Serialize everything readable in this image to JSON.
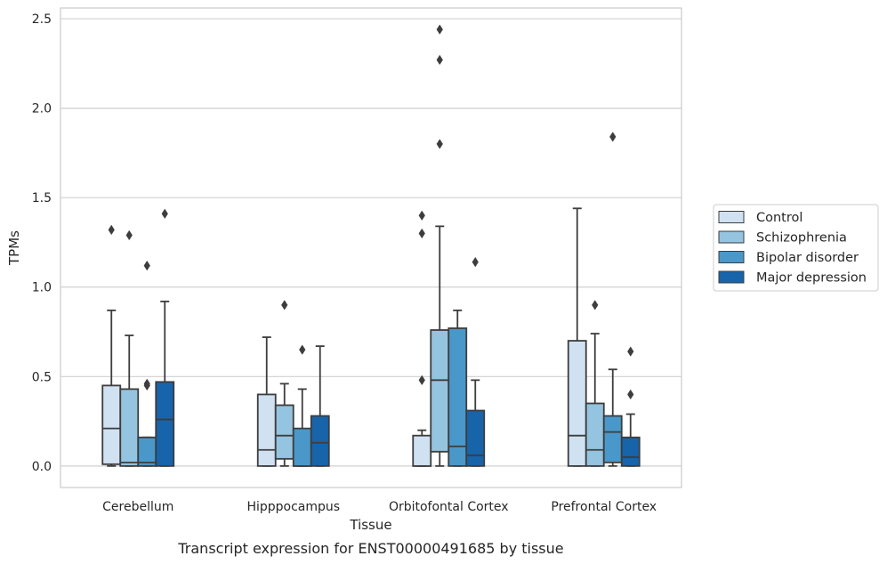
{
  "chart_data": {
    "type": "box",
    "title": "",
    "xlabel": "Tissue",
    "ylabel": "TPMs",
    "caption": "Transcript expression for ENST00000491685 by tissue",
    "ylim": [
      -0.12,
      2.56
    ],
    "yticks": [
      0.0,
      0.5,
      1.0,
      1.5,
      2.0,
      2.5
    ],
    "ytick_labels": [
      "0.0",
      "0.5",
      "1.0",
      "1.5",
      "2.0",
      "2.5"
    ],
    "grid": "horizontal",
    "legend_position": "right",
    "categories": [
      "Cerebellum",
      "Hipppocampus",
      "Orbitofontal Cortex",
      "Prefrontal Cortex"
    ],
    "series": [
      {
        "name": "Control",
        "color": "#d0e1f2",
        "boxes": [
          {
            "whislo": 0.0,
            "q1": 0.01,
            "median": 0.21,
            "q3": 0.45,
            "whishi": 0.87,
            "fliers": [
              1.32
            ]
          },
          {
            "whislo": 0.0,
            "q1": 0.0,
            "median": 0.09,
            "q3": 0.4,
            "whishi": 0.72,
            "fliers": []
          },
          {
            "whislo": 0.0,
            "q1": 0.0,
            "median": 0.0,
            "q3": 0.17,
            "whishi": 0.2,
            "fliers": [
              0.48,
              1.3,
              1.4
            ]
          },
          {
            "whislo": 0.0,
            "q1": 0.0,
            "median": 0.17,
            "q3": 0.7,
            "whishi": 1.44,
            "fliers": []
          }
        ]
      },
      {
        "name": "Schizophrenia",
        "color": "#94c4df",
        "boxes": [
          {
            "whislo": 0.0,
            "q1": 0.0,
            "median": 0.02,
            "q3": 0.43,
            "whishi": 0.73,
            "fliers": [
              1.29
            ]
          },
          {
            "whislo": 0.0,
            "q1": 0.04,
            "median": 0.17,
            "q3": 0.34,
            "whishi": 0.46,
            "fliers": [
              0.9
            ]
          },
          {
            "whislo": 0.0,
            "q1": 0.08,
            "median": 0.48,
            "q3": 0.76,
            "whishi": 1.34,
            "fliers": [
              1.8,
              2.27,
              2.44
            ]
          },
          {
            "whislo": 0.0,
            "q1": 0.0,
            "median": 0.09,
            "q3": 0.35,
            "whishi": 0.74,
            "fliers": [
              0.9
            ]
          }
        ]
      },
      {
        "name": "Bipolar disorder",
        "color": "#4a98c9",
        "boxes": [
          {
            "whislo": 0.0,
            "q1": 0.0,
            "median": 0.02,
            "q3": 0.16,
            "whishi": 0.16,
            "fliers": [
              0.45,
              0.46,
              1.12
            ]
          },
          {
            "whislo": 0.0,
            "q1": 0.0,
            "median": 0.0,
            "q3": 0.21,
            "whishi": 0.43,
            "fliers": [
              0.65
            ]
          },
          {
            "whislo": 0.0,
            "q1": 0.0,
            "median": 0.11,
            "q3": 0.77,
            "whishi": 0.87,
            "fliers": []
          },
          {
            "whislo": 0.0,
            "q1": 0.02,
            "median": 0.19,
            "q3": 0.28,
            "whishi": 0.54,
            "fliers": [
              1.84
            ]
          }
        ]
      },
      {
        "name": "Major depression",
        "color": "#1764ab",
        "boxes": [
          {
            "whislo": 0.0,
            "q1": 0.0,
            "median": 0.26,
            "q3": 0.47,
            "whishi": 0.92,
            "fliers": [
              1.41
            ]
          },
          {
            "whislo": 0.0,
            "q1": 0.0,
            "median": 0.13,
            "q3": 0.28,
            "whishi": 0.67,
            "fliers": []
          },
          {
            "whislo": 0.0,
            "q1": 0.0,
            "median": 0.06,
            "q3": 0.31,
            "whishi": 0.48,
            "fliers": [
              1.14
            ]
          },
          {
            "whislo": 0.0,
            "q1": 0.0,
            "median": 0.05,
            "q3": 0.16,
            "whishi": 0.29,
            "fliers": [
              0.4,
              0.64
            ]
          }
        ]
      }
    ]
  }
}
